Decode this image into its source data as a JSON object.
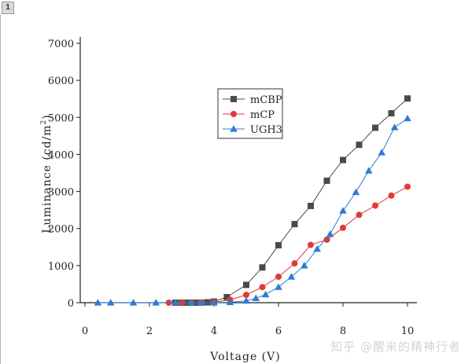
{
  "panel": {
    "tag": "1"
  },
  "watermark": "知乎 @醒来的精神行者",
  "chart_data": {
    "type": "line",
    "xlabel": "Voltage (V)",
    "ylabel": "Luminance (cd/m²)",
    "ylabel_parts": {
      "main": "Luminance (cd/m",
      "sup": "2",
      "close": ")"
    },
    "xlim": [
      0,
      10
    ],
    "ylim": [
      0,
      7000
    ],
    "xticks": [
      0,
      2,
      4,
      6,
      8,
      10
    ],
    "yticks": [
      0,
      1000,
      2000,
      3000,
      4000,
      5000,
      6000,
      7000
    ],
    "grid": false,
    "legend_position": "upper-center",
    "series": [
      {
        "name": "mCBP",
        "marker": "square",
        "color": "#4a4a4a",
        "x": [
          2.8,
          3.0,
          3.2,
          3.4,
          3.6,
          3.8,
          4.0,
          4.4,
          5.0,
          5.5,
          6.0,
          6.5,
          7.0,
          7.5,
          8.0,
          8.5,
          9.0,
          9.5,
          10.0
        ],
        "y": [
          0,
          0,
          0,
          0,
          0,
          10,
          30,
          150,
          480,
          950,
          1550,
          2120,
          2610,
          3290,
          3850,
          4260,
          4720,
          5110,
          5510
        ]
      },
      {
        "name": "mCP",
        "marker": "circle",
        "color": "#e03a3a",
        "x": [
          2.6,
          3.0,
          3.3,
          3.6,
          4.0,
          4.5,
          5.0,
          5.5,
          6.0,
          6.5,
          7.0,
          7.5,
          8.0,
          8.5,
          9.0,
          9.5,
          10.0
        ],
        "y": [
          0,
          0,
          0,
          0,
          10,
          80,
          210,
          420,
          700,
          1060,
          1560,
          1700,
          2020,
          2370,
          2620,
          2890,
          3130
        ]
      },
      {
        "name": "UGH3",
        "marker": "triangle",
        "color": "#2f7cd1",
        "x": [
          0.4,
          0.8,
          1.5,
          2.2,
          2.8,
          3.3,
          3.6,
          4.0,
          4.5,
          5.0,
          5.3,
          5.6,
          6.0,
          6.4,
          6.8,
          7.2,
          7.6,
          8.0,
          8.4,
          8.8,
          9.2,
          9.6,
          10.0
        ],
        "y": [
          0,
          0,
          0,
          0,
          0,
          0,
          0,
          0,
          10,
          50,
          120,
          220,
          420,
          700,
          1000,
          1450,
          1850,
          2480,
          2980,
          3560,
          4050,
          4730,
          4970
        ]
      }
    ]
  }
}
